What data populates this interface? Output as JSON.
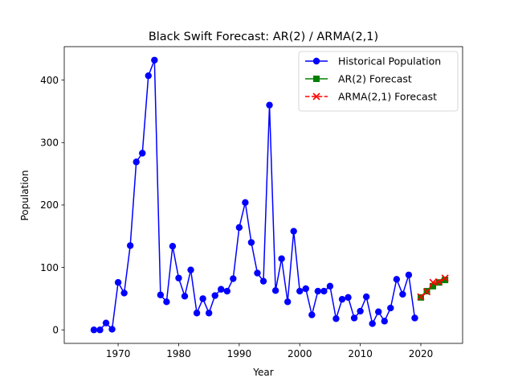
{
  "chart_data": {
    "type": "line",
    "title": "Black Swift Forecast: AR(2) / ARMA(2,1)",
    "xlabel": "Year",
    "ylabel": "Population",
    "xlim": [
      1961.1,
      2026.9
    ],
    "ylim": [
      -21.6,
      453.6
    ],
    "xticks": [
      1970,
      1980,
      1990,
      2000,
      2010,
      2020
    ],
    "yticks": [
      0,
      100,
      200,
      300,
      400
    ],
    "grid": false,
    "legend_position": "top-right",
    "colors": {
      "historical": "#0000ff",
      "ar2": "#008000",
      "arma21": "#ff0000"
    },
    "series": [
      {
        "name": "Historical Population",
        "style": "solid-circle",
        "x": [
          1966,
          1967,
          1968,
          1969,
          1970,
          1971,
          1972,
          1973,
          1974,
          1975,
          1976,
          1977,
          1978,
          1979,
          1980,
          1981,
          1982,
          1983,
          1984,
          1985,
          1986,
          1987,
          1988,
          1989,
          1990,
          1991,
          1992,
          1993,
          1994,
          1995,
          1996,
          1997,
          1998,
          1999,
          2000,
          2001,
          2002,
          2003,
          2004,
          2005,
          2006,
          2007,
          2008,
          2009,
          2010,
          2011,
          2012,
          2013,
          2014,
          2015,
          2016,
          2017,
          2018,
          2019
        ],
        "y": [
          0,
          0,
          11,
          1,
          76,
          59,
          135,
          269,
          283,
          407,
          432,
          56,
          45,
          134,
          83,
          54,
          96,
          27,
          50,
          27,
          55,
          65,
          62,
          82,
          164,
          204,
          140,
          91,
          78,
          360,
          63,
          114,
          45,
          158,
          62,
          66,
          24,
          62,
          62,
          70,
          18,
          49,
          52,
          19,
          30,
          53,
          10,
          29,
          14,
          35,
          81,
          57,
          88,
          19
        ]
      },
      {
        "name": "AR(2) Forecast",
        "style": "solid-square",
        "x": [
          2020,
          2021,
          2022,
          2023,
          2024
        ],
        "y": [
          52,
          62,
          70,
          76,
          80
        ]
      },
      {
        "name": "ARMA(2,1) Forecast",
        "style": "dashed-x",
        "x": [
          2020,
          2021,
          2022,
          2023,
          2024
        ],
        "y": [
          53,
          61,
          76,
          77,
          83
        ]
      }
    ]
  }
}
